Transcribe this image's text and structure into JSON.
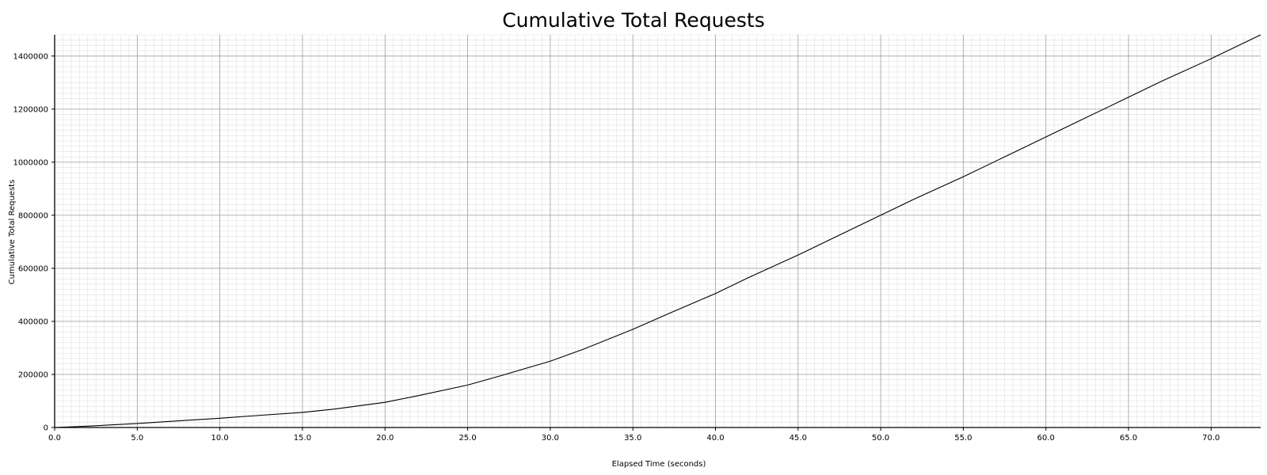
{
  "chart_data": {
    "type": "line",
    "title": "Cumulative Total Requests",
    "xlabel": "Elapsed Time (seconds)",
    "ylabel": "Cumulative Total Requests",
    "xlim": [
      0,
      73.0
    ],
    "ylim": [
      0,
      1480000
    ],
    "x_ticks": [
      "0.0",
      "5.0",
      "10.0",
      "15.0",
      "20.0",
      "25.0",
      "30.0",
      "35.0",
      "40.0",
      "45.0",
      "50.0",
      "55.0",
      "60.0",
      "65.0",
      "70.0"
    ],
    "x_tick_values": [
      0,
      5,
      10,
      15,
      20,
      25,
      30,
      35,
      40,
      45,
      50,
      55,
      60,
      65,
      70
    ],
    "y_ticks": [
      "0",
      "200000",
      "400000",
      "600000",
      "800000",
      "1000000",
      "1200000",
      "1400000"
    ],
    "y_tick_values": [
      0,
      200000,
      400000,
      600000,
      800000,
      1000000,
      1200000,
      1400000
    ],
    "grid": true,
    "minor_grid": true,
    "legend": "none",
    "colors": {
      "line": "#000000",
      "major_grid": "#a0a0a0",
      "minor_grid": "#e0e0e0",
      "axis": "#000000"
    },
    "series": [
      {
        "x": [
          0,
          2,
          5,
          8,
          10,
          12,
          15,
          17,
          20,
          22,
          25,
          27,
          30,
          32,
          35,
          37,
          40,
          42,
          45,
          47,
          50,
          52,
          55,
          57,
          60,
          62,
          65,
          67,
          70,
          73
        ],
        "values": [
          0,
          5000,
          15000,
          27000,
          35000,
          44000,
          57000,
          70000,
          95000,
          120000,
          160000,
          195000,
          250000,
          295000,
          370000,
          425000,
          505000,
          565000,
          650000,
          710000,
          800000,
          860000,
          945000,
          1005000,
          1095000,
          1155000,
          1245000,
          1305000,
          1390000,
          1480000
        ]
      }
    ]
  }
}
